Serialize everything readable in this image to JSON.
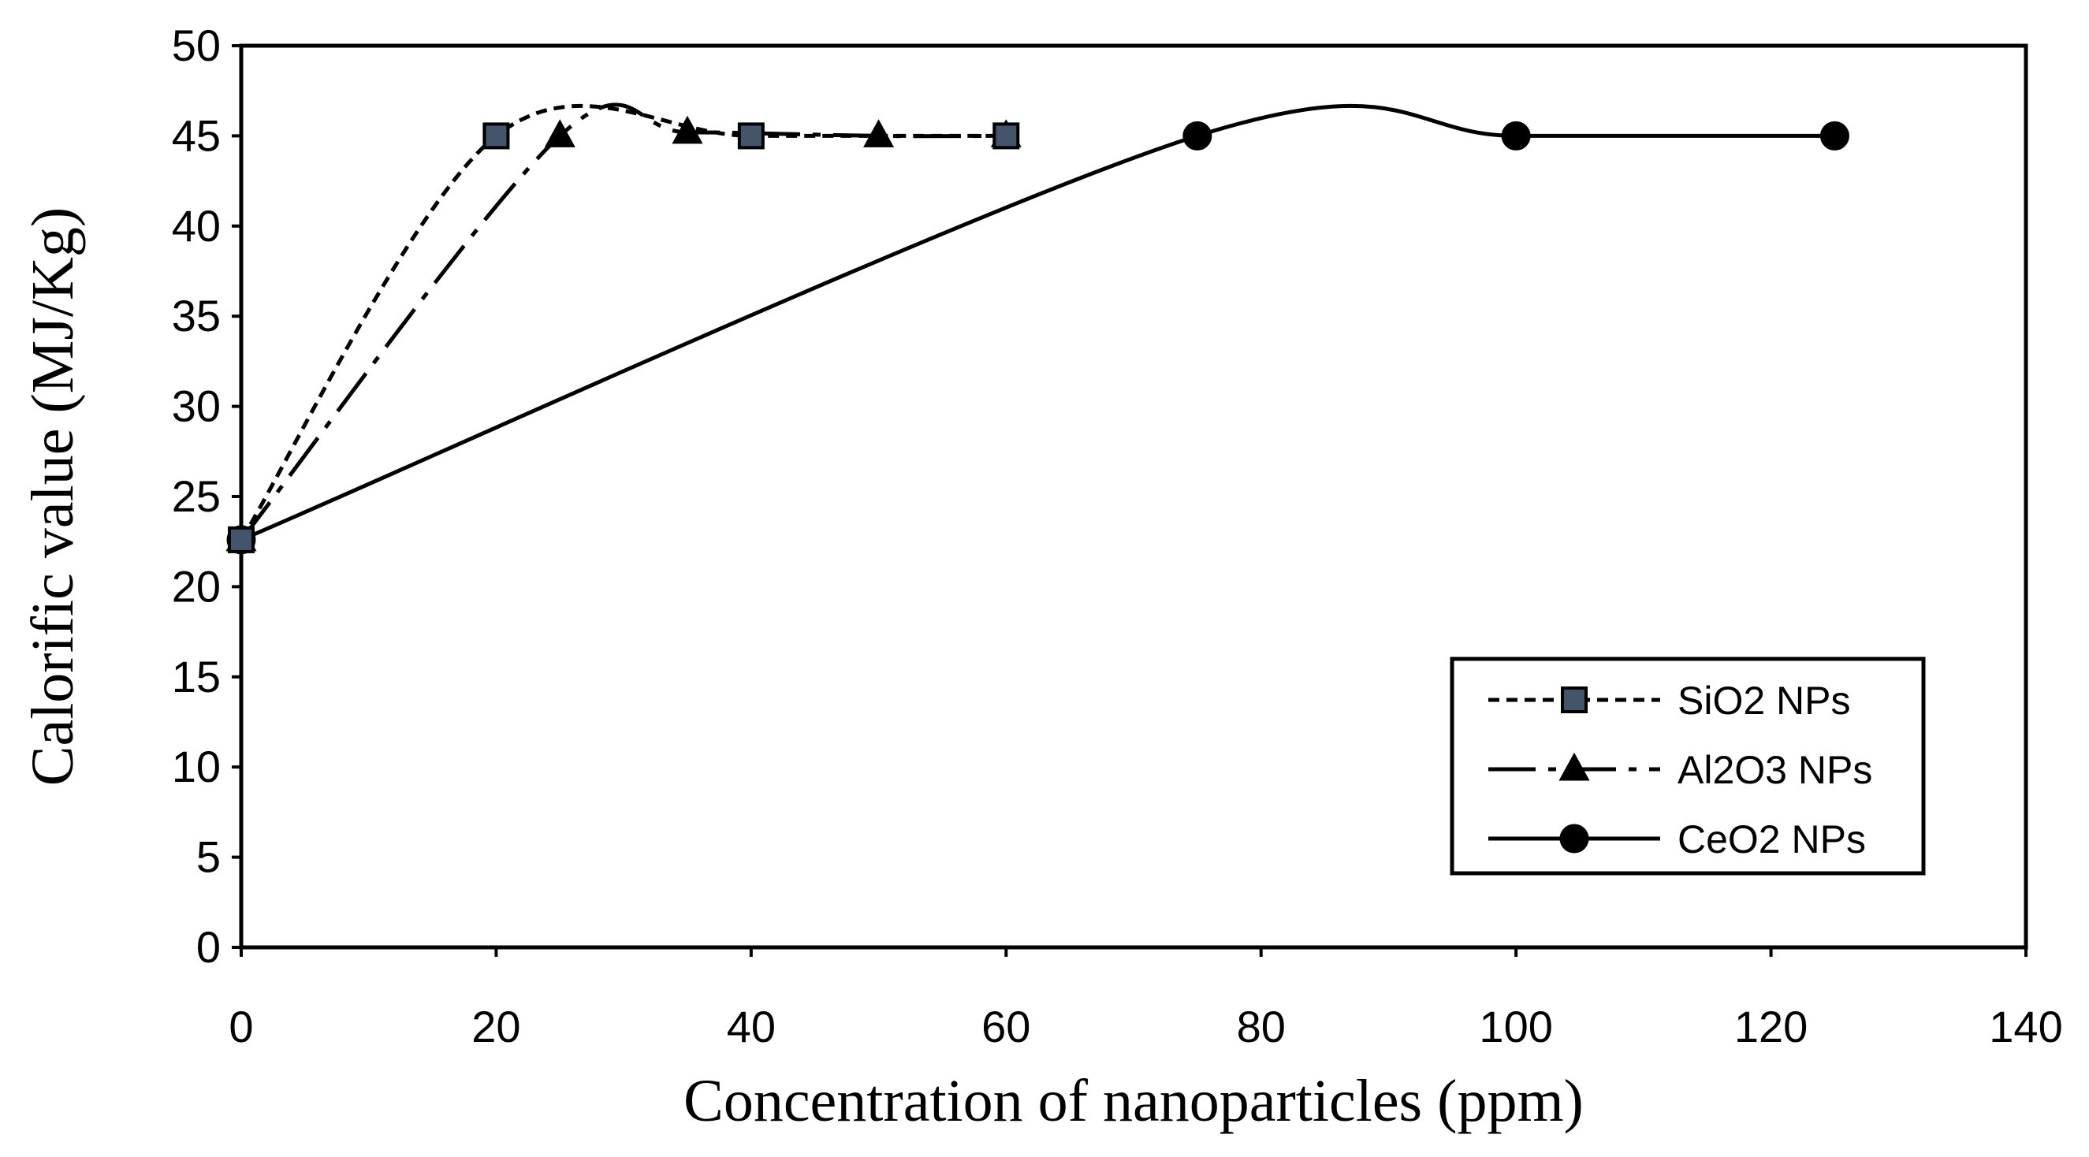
{
  "chart_data": {
    "type": "line",
    "title": "",
    "xlabel": "Concentration of nanoparticles (ppm)",
    "ylabel": "Calorific value (MJ/Kg)",
    "xlim": [
      0,
      140
    ],
    "ylim": [
      0,
      50
    ],
    "xticks": [
      0,
      20,
      40,
      60,
      80,
      100,
      120,
      140
    ],
    "yticks": [
      0,
      5,
      10,
      15,
      20,
      25,
      30,
      35,
      40,
      45,
      50
    ],
    "grid": false,
    "legend_position": "bottom-right",
    "series": [
      {
        "name": "SiO2 NPs",
        "x": [
          0,
          20,
          40,
          60
        ],
        "y": [
          22.6,
          45,
          45,
          45
        ],
        "marker": "square",
        "line": "dotted",
        "color": "#000000",
        "marker_fill": "#44546a"
      },
      {
        "name": "Al2O3 NPs",
        "x": [
          0,
          25,
          35,
          50,
          60
        ],
        "y": [
          22.6,
          45,
          45.2,
          45,
          45
        ],
        "marker": "triangle",
        "line": "dash-dot",
        "color": "#000000",
        "marker_fill": "#000000"
      },
      {
        "name": "CeO2 NPs",
        "x": [
          0,
          75,
          100,
          125
        ],
        "y": [
          22.6,
          45,
          45,
          45
        ],
        "marker": "circle",
        "line": "solid",
        "color": "#000000",
        "marker_fill": "#000000"
      }
    ]
  }
}
